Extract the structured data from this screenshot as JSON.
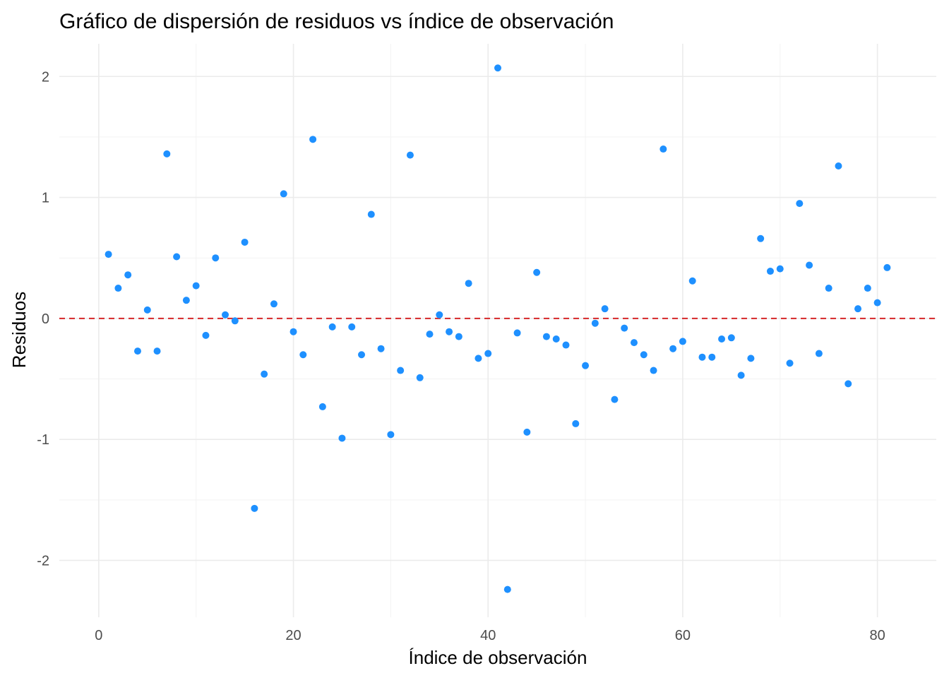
{
  "chart_data": {
    "type": "scatter",
    "title": "Gráfico de dispersión de residuos vs índice de observación",
    "xlabel": "Índice de observación",
    "ylabel": "Residuos",
    "xlim": [
      -4.05,
      86.05
    ],
    "ylim": [
      -2.47,
      2.27
    ],
    "x_ticks": [
      0,
      20,
      40,
      60,
      80
    ],
    "y_ticks": [
      -2,
      -1,
      0,
      1,
      2
    ],
    "x_tick_labels": [
      "0",
      "20",
      "40",
      "60",
      "80"
    ],
    "y_tick_labels": [
      "-2",
      "-1",
      "0",
      "1",
      "2"
    ],
    "grid": true,
    "reference_line": {
      "y": 0,
      "style": "dashed",
      "color": "#d62728"
    },
    "point_color": "#1e90ff",
    "points": [
      {
        "x": 1,
        "y": 0.53
      },
      {
        "x": 2,
        "y": 0.25
      },
      {
        "x": 3,
        "y": 0.36
      },
      {
        "x": 4,
        "y": -0.27
      },
      {
        "x": 5,
        "y": 0.07
      },
      {
        "x": 6,
        "y": -0.27
      },
      {
        "x": 7,
        "y": 1.36
      },
      {
        "x": 8,
        "y": 0.51
      },
      {
        "x": 9,
        "y": 0.15
      },
      {
        "x": 10,
        "y": 0.27
      },
      {
        "x": 11,
        "y": -0.14
      },
      {
        "x": 12,
        "y": 0.5
      },
      {
        "x": 13,
        "y": 0.03
      },
      {
        "x": 14,
        "y": -0.02
      },
      {
        "x": 15,
        "y": 0.63
      },
      {
        "x": 16,
        "y": -1.57
      },
      {
        "x": 17,
        "y": -0.46
      },
      {
        "x": 18,
        "y": 0.12
      },
      {
        "x": 19,
        "y": 1.03
      },
      {
        "x": 20,
        "y": -0.11
      },
      {
        "x": 21,
        "y": -0.3
      },
      {
        "x": 22,
        "y": 1.48
      },
      {
        "x": 23,
        "y": -0.73
      },
      {
        "x": 24,
        "y": -0.07
      },
      {
        "x": 25,
        "y": -0.99
      },
      {
        "x": 26,
        "y": -0.07
      },
      {
        "x": 27,
        "y": -0.3
      },
      {
        "x": 28,
        "y": 0.86
      },
      {
        "x": 29,
        "y": -0.25
      },
      {
        "x": 30,
        "y": -0.96
      },
      {
        "x": 31,
        "y": -0.43
      },
      {
        "x": 32,
        "y": 1.35
      },
      {
        "x": 33,
        "y": -0.49
      },
      {
        "x": 34,
        "y": -0.13
      },
      {
        "x": 35,
        "y": 0.03
      },
      {
        "x": 36,
        "y": -0.11
      },
      {
        "x": 37,
        "y": -0.15
      },
      {
        "x": 38,
        "y": 0.29
      },
      {
        "x": 39,
        "y": -0.33
      },
      {
        "x": 40,
        "y": -0.29
      },
      {
        "x": 41,
        "y": 2.07
      },
      {
        "x": 42,
        "y": -2.24
      },
      {
        "x": 43,
        "y": -0.12
      },
      {
        "x": 44,
        "y": -0.94
      },
      {
        "x": 45,
        "y": 0.38
      },
      {
        "x": 46,
        "y": -0.15
      },
      {
        "x": 47,
        "y": -0.17
      },
      {
        "x": 48,
        "y": -0.22
      },
      {
        "x": 49,
        "y": -0.87
      },
      {
        "x": 50,
        "y": -0.39
      },
      {
        "x": 51,
        "y": -0.04
      },
      {
        "x": 52,
        "y": 0.08
      },
      {
        "x": 53,
        "y": -0.67
      },
      {
        "x": 54,
        "y": -0.08
      },
      {
        "x": 55,
        "y": -0.2
      },
      {
        "x": 56,
        "y": -0.3
      },
      {
        "x": 57,
        "y": -0.43
      },
      {
        "x": 58,
        "y": 1.4
      },
      {
        "x": 59,
        "y": -0.25
      },
      {
        "x": 60,
        "y": -0.19
      },
      {
        "x": 61,
        "y": 0.31
      },
      {
        "x": 62,
        "y": -0.32
      },
      {
        "x": 63,
        "y": -0.32
      },
      {
        "x": 64,
        "y": -0.17
      },
      {
        "x": 65,
        "y": -0.16
      },
      {
        "x": 66,
        "y": -0.47
      },
      {
        "x": 67,
        "y": -0.33
      },
      {
        "x": 68,
        "y": 0.66
      },
      {
        "x": 69,
        "y": 0.39
      },
      {
        "x": 70,
        "y": 0.41
      },
      {
        "x": 71,
        "y": -0.37
      },
      {
        "x": 72,
        "y": 0.95
      },
      {
        "x": 73,
        "y": 0.44
      },
      {
        "x": 74,
        "y": -0.29
      },
      {
        "x": 75,
        "y": 0.25
      },
      {
        "x": 76,
        "y": 1.26
      },
      {
        "x": 77,
        "y": -0.54
      },
      {
        "x": 78,
        "y": 0.08
      },
      {
        "x": 79,
        "y": 0.25
      },
      {
        "x": 80,
        "y": 0.13
      },
      {
        "x": 81,
        "y": 0.42
      }
    ]
  }
}
